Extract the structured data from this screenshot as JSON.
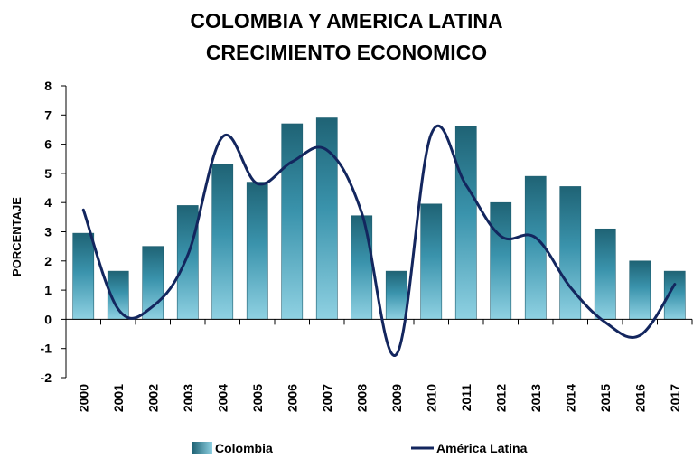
{
  "chart_data": {
    "type": "bar",
    "title": "COLOMBIA Y AMERICA LATINA",
    "subtitle": "CRECIMIENTO ECONOMICO",
    "xlabel": "",
    "ylabel": "PORCENTAJE",
    "ylim": [
      -2,
      8
    ],
    "yticks": [
      "8",
      "7",
      "6",
      "5",
      "4",
      "3",
      "2",
      "1",
      "0",
      "-1",
      "-2"
    ],
    "grid": false,
    "legend_position": "bottom",
    "categories": [
      "2000",
      "2001",
      "2002",
      "2003",
      "2004",
      "2005",
      "2006",
      "2007",
      "2008",
      "2009",
      "2010",
      "2011",
      "2012",
      "2013",
      "2014",
      "2015",
      "2016",
      "2017"
    ],
    "series": [
      {
        "name": "Colombia",
        "type": "bar",
        "color": "#2f7f95",
        "values": [
          2.95,
          1.65,
          2.5,
          3.9,
          5.3,
          4.7,
          6.7,
          6.9,
          3.55,
          1.65,
          3.95,
          6.6,
          4.0,
          4.9,
          4.55,
          3.1,
          2.0,
          1.65
        ]
      },
      {
        "name": "América Latina",
        "type": "line",
        "color": "#13265e",
        "values": [
          3.75,
          0.35,
          0.45,
          2.2,
          6.25,
          4.65,
          5.4,
          5.8,
          3.65,
          -1.2,
          6.35,
          4.6,
          2.85,
          2.8,
          1.1,
          -0.1,
          -0.55,
          1.2
        ]
      }
    ]
  }
}
